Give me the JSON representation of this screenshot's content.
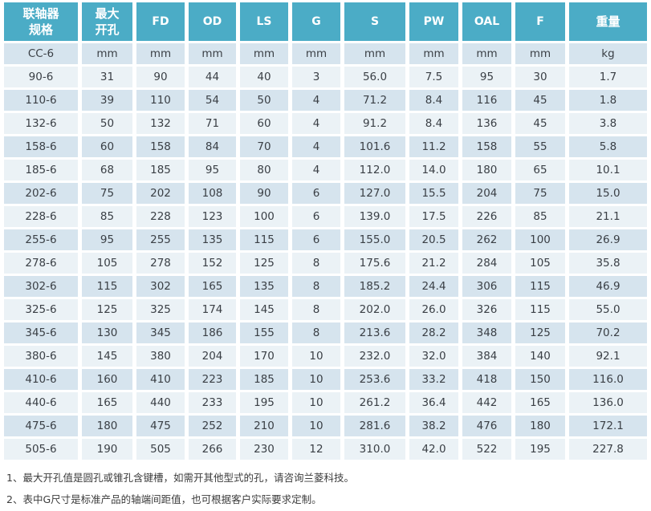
{
  "colors": {
    "header_bg": "#4BACC6",
    "header_text": "#FFFFFF",
    "row_dark": "#D6E4EE",
    "row_light": "#EBF2F6",
    "body_text": "#3A3F45",
    "page_bg": "#FFFFFF"
  },
  "table": {
    "columns": [
      {
        "key": "spec",
        "label_lines": [
          "联轴器",
          "规格"
        ],
        "cjk": true
      },
      {
        "key": "max-bore",
        "label_lines": [
          "最大",
          "开孔"
        ],
        "cjk": true
      },
      {
        "key": "fd",
        "label_lines": [
          "FD"
        ],
        "cjk": false
      },
      {
        "key": "od",
        "label_lines": [
          "OD"
        ],
        "cjk": false
      },
      {
        "key": "ls",
        "label_lines": [
          "LS"
        ],
        "cjk": false
      },
      {
        "key": "g",
        "label_lines": [
          "G"
        ],
        "cjk": false
      },
      {
        "key": "s",
        "label_lines": [
          "S"
        ],
        "cjk": false
      },
      {
        "key": "pw",
        "label_lines": [
          "PW"
        ],
        "cjk": false
      },
      {
        "key": "oal",
        "label_lines": [
          "OAL"
        ],
        "cjk": false
      },
      {
        "key": "f",
        "label_lines": [
          "F"
        ],
        "cjk": false
      },
      {
        "key": "weight",
        "label_lines": [
          "重量"
        ],
        "cjk": true
      }
    ],
    "units_row": [
      "CC-6",
      "mm",
      "mm",
      "mm",
      "mm",
      "mm",
      "mm",
      "mm",
      "mm",
      "mm",
      "kg"
    ],
    "rows": [
      [
        "90-6",
        "31",
        "90",
        "44",
        "40",
        "3",
        "56.0",
        "7.5",
        "95",
        "30",
        "1.7"
      ],
      [
        "110-6",
        "39",
        "110",
        "54",
        "50",
        "4",
        "71.2",
        "8.4",
        "116",
        "45",
        "1.8"
      ],
      [
        "132-6",
        "50",
        "132",
        "71",
        "60",
        "4",
        "91.2",
        "8.4",
        "136",
        "45",
        "3.8"
      ],
      [
        "158-6",
        "60",
        "158",
        "84",
        "70",
        "4",
        "101.6",
        "11.2",
        "158",
        "55",
        "5.8"
      ],
      [
        "185-6",
        "68",
        "185",
        "95",
        "80",
        "4",
        "112.0",
        "14.0",
        "180",
        "65",
        "10.1"
      ],
      [
        "202-6",
        "75",
        "202",
        "108",
        "90",
        "6",
        "127.0",
        "15.5",
        "204",
        "75",
        "15.0"
      ],
      [
        "228-6",
        "85",
        "228",
        "123",
        "100",
        "6",
        "139.0",
        "17.5",
        "226",
        "85",
        "21.1"
      ],
      [
        "255-6",
        "95",
        "255",
        "135",
        "115",
        "6",
        "155.0",
        "20.5",
        "262",
        "100",
        "26.9"
      ],
      [
        "278-6",
        "105",
        "278",
        "152",
        "125",
        "8",
        "175.6",
        "21.2",
        "284",
        "105",
        "35.8"
      ],
      [
        "302-6",
        "115",
        "302",
        "165",
        "135",
        "8",
        "185.2",
        "24.4",
        "306",
        "115",
        "46.9"
      ],
      [
        "325-6",
        "125",
        "325",
        "174",
        "145",
        "8",
        "202.0",
        "26.0",
        "326",
        "115",
        "55.0"
      ],
      [
        "345-6",
        "130",
        "345",
        "186",
        "155",
        "8",
        "213.6",
        "28.2",
        "348",
        "125",
        "70.2"
      ],
      [
        "380-6",
        "145",
        "380",
        "204",
        "170",
        "10",
        "232.0",
        "32.0",
        "384",
        "140",
        "92.1"
      ],
      [
        "410-6",
        "160",
        "410",
        "223",
        "185",
        "10",
        "253.6",
        "33.2",
        "418",
        "150",
        "116.0"
      ],
      [
        "440-6",
        "165",
        "440",
        "233",
        "195",
        "10",
        "261.2",
        "36.4",
        "442",
        "165",
        "136.0"
      ],
      [
        "475-6",
        "180",
        "475",
        "252",
        "210",
        "10",
        "281.6",
        "38.2",
        "476",
        "180",
        "172.1"
      ],
      [
        "505-6",
        "190",
        "505",
        "266",
        "230",
        "12",
        "310.0",
        "42.0",
        "522",
        "195",
        "227.8"
      ]
    ]
  },
  "footnotes": [
    "1、最大开孔值是圆孔或锥孔含键槽，如需开其他型式的孔，请咨询兰菱科技。",
    "2、表中G尺寸是标准产品的轴端间距值，也可根据客户实际要求定制。"
  ]
}
